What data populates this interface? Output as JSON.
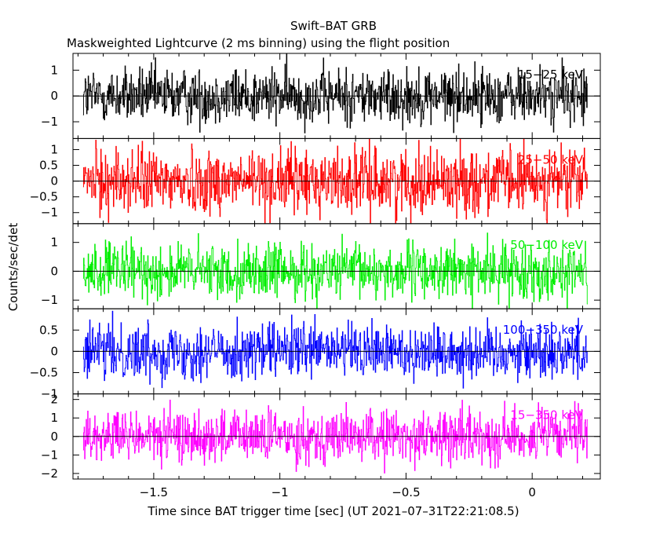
{
  "chart_data": {
    "type": "line",
    "title": "Swift–BAT GRB",
    "subtitle": "Maskweighted Lightcurve (2 ms binning) using the flight position",
    "xlabel": "Time since BAT trigger time [sec] (UT 2021–07–31T22:21:08.5)",
    "ylabel": "Counts/sec/det",
    "xlim": [
      -1.82,
      0.27
    ],
    "x_range": [
      -1.78,
      0.22
    ],
    "bin_width": 0.002,
    "xticks": [
      {
        "value": -1.5,
        "label": "−1.5"
      },
      {
        "value": -1.0,
        "label": "−1"
      },
      {
        "value": -0.5,
        "label": "−0.5"
      },
      {
        "value": 0.0,
        "label": "0"
      }
    ],
    "panels": [
      {
        "band": "15−25 keV",
        "color": "#000000",
        "ylim": [
          -1.65,
          1.65
        ],
        "amplitude": 0.55,
        "yticks": [
          {
            "value": 1,
            "label": "1"
          },
          {
            "value": 0,
            "label": "0"
          },
          {
            "value": -1,
            "label": "−1"
          }
        ]
      },
      {
        "band": "25−50 keV",
        "color": "#ff0000",
        "ylim": [
          -1.35,
          1.35
        ],
        "amplitude": 0.52,
        "yticks": [
          {
            "value": 1,
            "label": "1"
          },
          {
            "value": 0.5,
            "label": "0.5"
          },
          {
            "value": 0,
            "label": "0"
          },
          {
            "value": -0.5,
            "label": "−0.5"
          },
          {
            "value": -1,
            "label": "−1"
          }
        ]
      },
      {
        "band": "50−100 keV",
        "color": "#00ee00",
        "ylim": [
          -1.3,
          1.65
        ],
        "amplitude": 0.48,
        "yticks": [
          {
            "value": 1,
            "label": "1"
          },
          {
            "value": 0,
            "label": "0"
          },
          {
            "value": -1,
            "label": "−1"
          }
        ]
      },
      {
        "band": "100−350 keV",
        "color": "#0000ff",
        "ylim": [
          -1.0,
          1.0
        ],
        "amplitude": 0.33,
        "yticks": [
          {
            "value": 0.5,
            "label": "0.5"
          },
          {
            "value": 0,
            "label": "0"
          },
          {
            "value": -0.5,
            "label": "−0.5"
          },
          {
            "value": -1,
            "label": "−1"
          }
        ]
      },
      {
        "band": "15−350 keV",
        "color": "#ff00ff",
        "ylim": [
          -2.3,
          2.3
        ],
        "amplitude": 0.72,
        "yticks": [
          {
            "value": 2,
            "label": "2"
          },
          {
            "value": 1,
            "label": "1"
          },
          {
            "value": 0,
            "label": "0"
          },
          {
            "value": -1,
            "label": "−1"
          },
          {
            "value": -2,
            "label": "−2"
          }
        ]
      }
    ]
  }
}
